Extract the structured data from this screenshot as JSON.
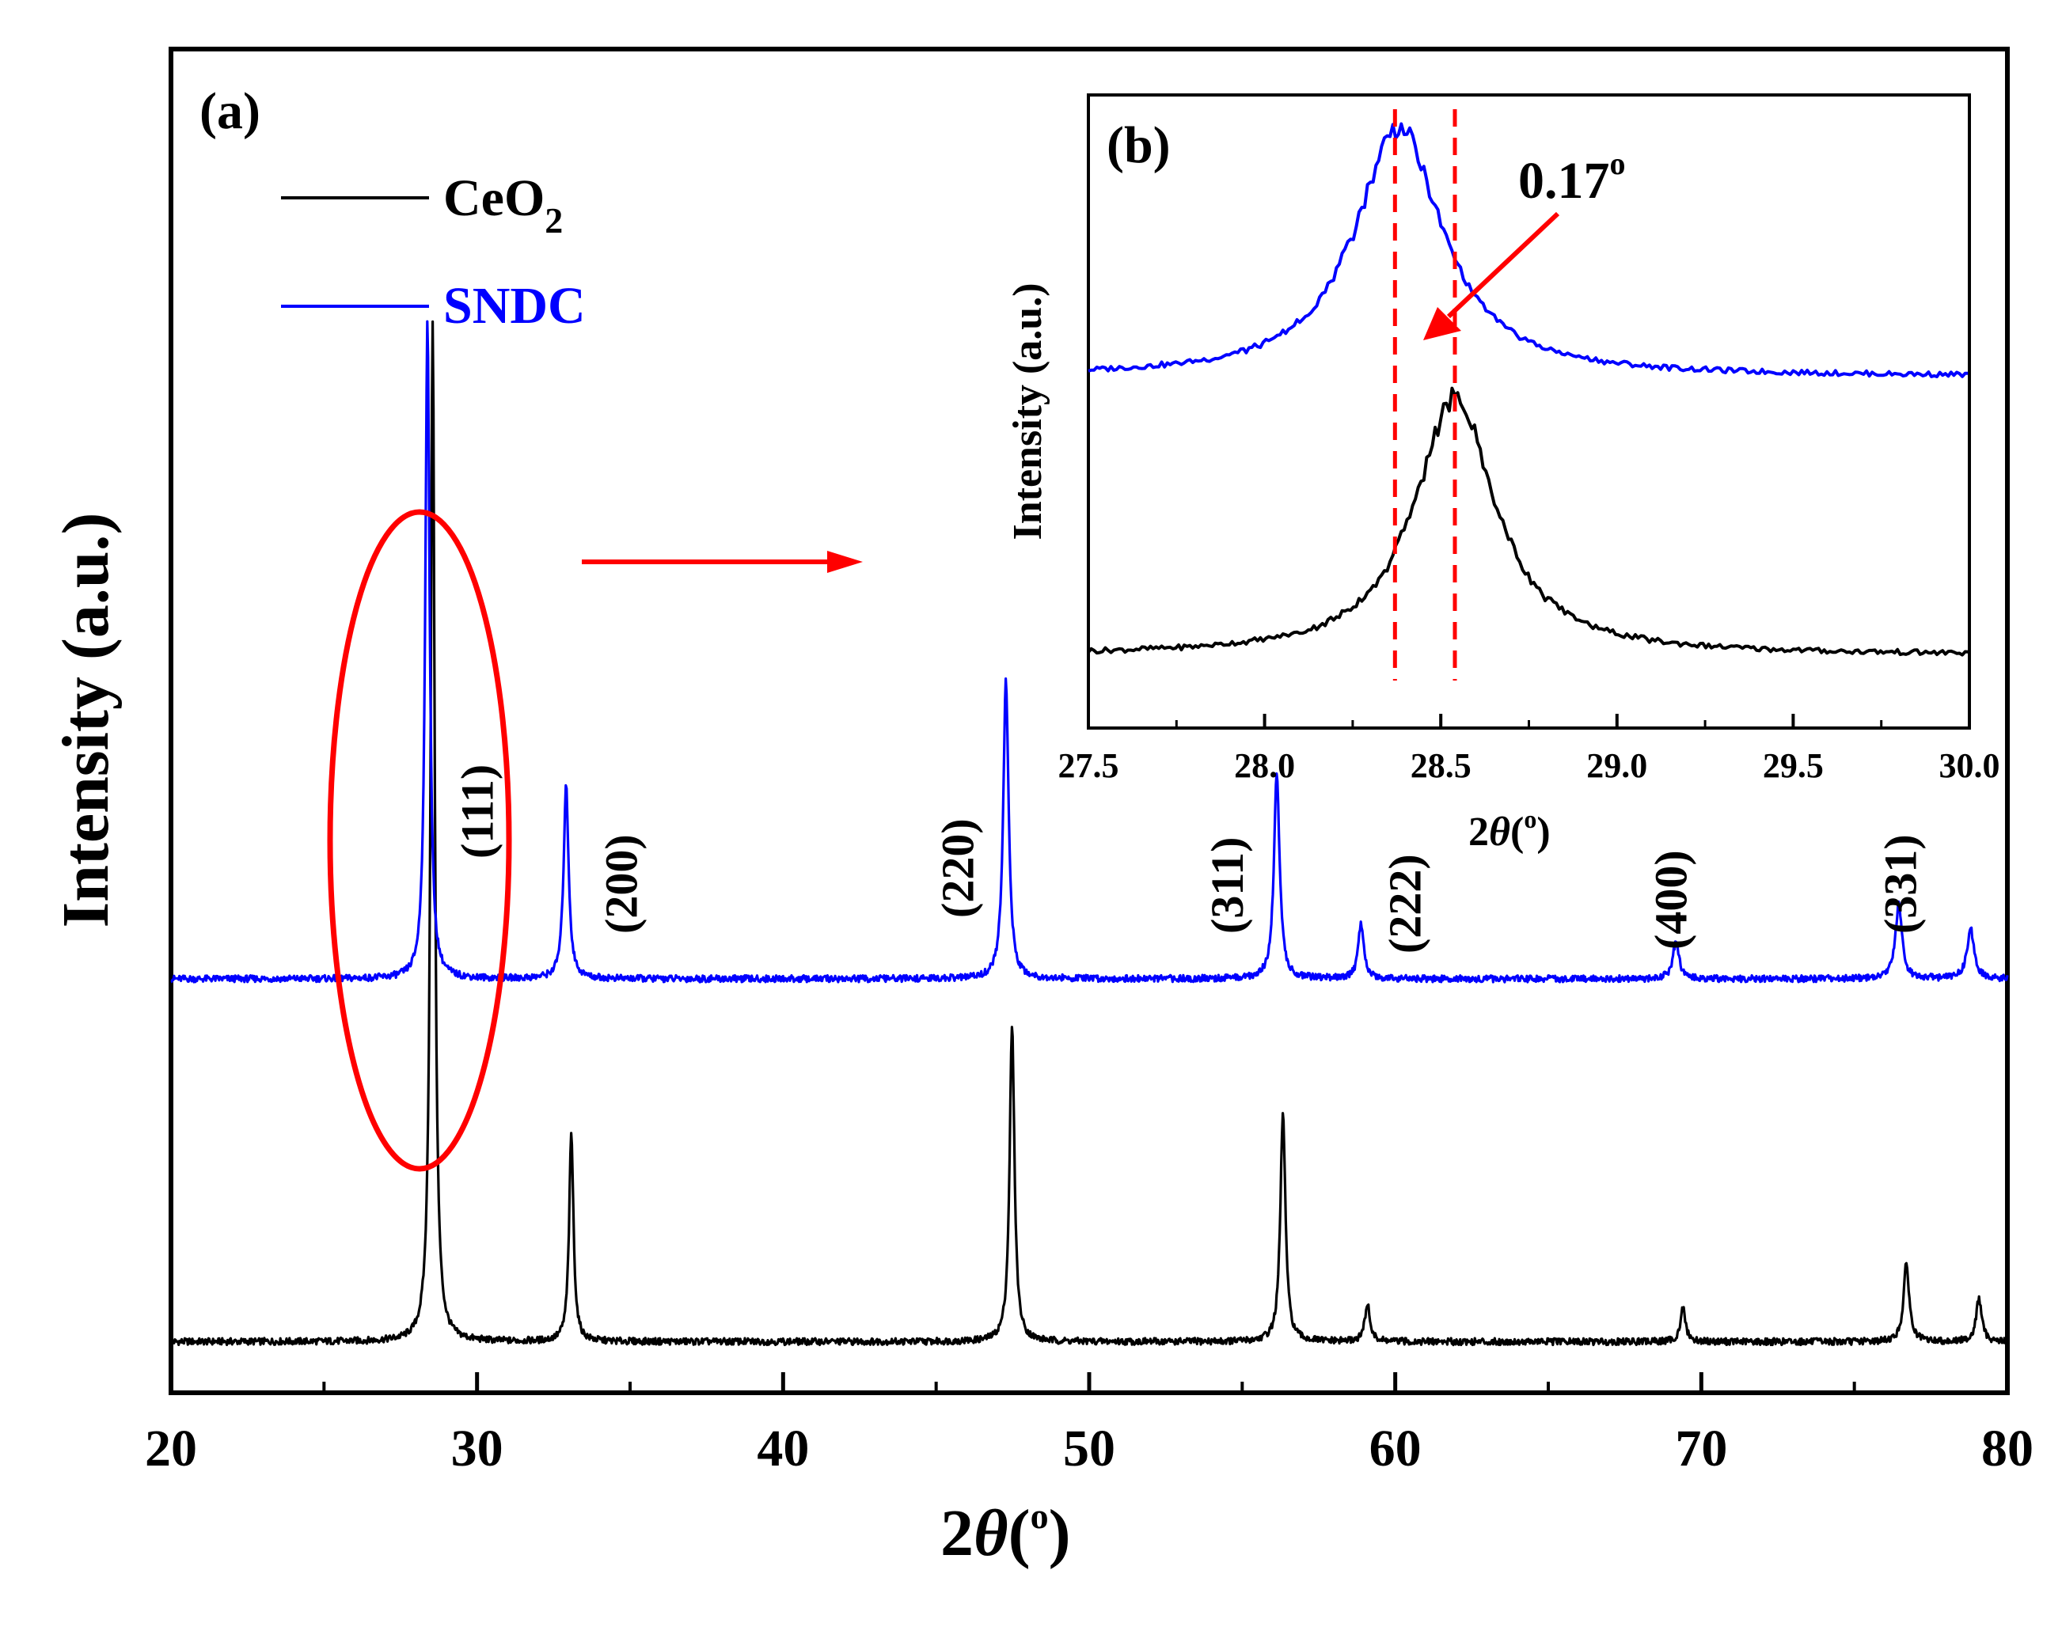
{
  "chart_data": [
    {
      "panel": "(a)",
      "type": "line",
      "xlabel": "2θ(°)",
      "xlabel_symbol": "θ",
      "xlabel_unit": "o",
      "ylabel": "Intensity (a.u.)",
      "xlim": [
        20,
        80
      ],
      "ylim": [
        0,
        1
      ],
      "x_ticks": [
        20,
        30,
        40,
        50,
        60,
        70,
        80
      ],
      "y_ticks_shown": false,
      "legend": {
        "position": "top-left",
        "entries": [
          {
            "label": "CeO",
            "subscript": "2",
            "color": "#000000"
          },
          {
            "label": "SNDC",
            "subscript": "",
            "color": "#0000ff"
          }
        ]
      },
      "series": [
        {
          "name": "CeO2",
          "color": "#000000",
          "baseline": 0.038,
          "peaks": [
            {
              "x": 28.55,
              "height": 0.76,
              "width": 0.16
            },
            {
              "x": 33.08,
              "height": 0.155,
              "width": 0.17
            },
            {
              "x": 47.48,
              "height": 0.235,
              "width": 0.19
            },
            {
              "x": 56.33,
              "height": 0.17,
              "width": 0.2
            },
            {
              "x": 59.09,
              "height": 0.028,
              "width": 0.2
            },
            {
              "x": 69.4,
              "height": 0.025,
              "width": 0.2
            },
            {
              "x": 76.7,
              "height": 0.058,
              "width": 0.22
            },
            {
              "x": 79.07,
              "height": 0.032,
              "width": 0.22
            }
          ]
        },
        {
          "name": "SNDC",
          "color": "#0000ff",
          "baseline": 0.308,
          "peaks": [
            {
              "x": 28.38,
              "height": 0.49,
              "width": 0.17
            },
            {
              "x": 32.91,
              "height": 0.143,
              "width": 0.2
            },
            {
              "x": 47.28,
              "height": 0.222,
              "width": 0.21
            },
            {
              "x": 56.13,
              "height": 0.154,
              "width": 0.22
            },
            {
              "x": 58.88,
              "height": 0.04,
              "width": 0.22
            },
            {
              "x": 69.17,
              "height": 0.027,
              "width": 0.25
            },
            {
              "x": 76.45,
              "height": 0.055,
              "width": 0.26
            },
            {
              "x": 78.8,
              "height": 0.037,
              "width": 0.28
            }
          ]
        }
      ],
      "annotations": [
        {
          "text": "(111)",
          "x": 30.0
        },
        {
          "text": "(200)",
          "x": 34.7
        },
        {
          "text": "(220)",
          "x": 45.7
        },
        {
          "text": "(311)",
          "x": 54.5
        },
        {
          "text": "(222)",
          "x": 60.3
        },
        {
          "text": "(400)",
          "x": 69.0
        },
        {
          "text": "(331)",
          "x": 76.5
        }
      ],
      "highlight": {
        "shape": "ellipse",
        "x_center": 28.3,
        "color": "#ff0000"
      }
    },
    {
      "panel": "(b)",
      "type": "line",
      "xlabel": "2θ(°)",
      "xlabel_symbol": "θ",
      "xlabel_unit": "o",
      "ylabel": "Intensity (a.u.)",
      "xlim": [
        27.5,
        30.0
      ],
      "x_ticks": [
        "27.5",
        "28.0",
        "28.5",
        "29.0",
        "29.5",
        "30.0"
      ],
      "series": [
        {
          "name": "SNDC",
          "color": "#0000ff",
          "baseline": 0.555,
          "peak_x": 28.38,
          "peak_height": 0.395,
          "width": 0.15
        },
        {
          "name": "CeO2",
          "color": "#000000",
          "baseline": 0.115,
          "peak_x": 28.54,
          "peak_height": 0.405,
          "width": 0.14
        }
      ],
      "reference_lines": [
        {
          "x": 28.37,
          "style": "dashed",
          "color": "#ff0000"
        },
        {
          "x": 28.54,
          "style": "dashed",
          "color": "#ff0000"
        }
      ],
      "shift_annotation": {
        "value": "0.17",
        "unit": "o"
      }
    }
  ]
}
